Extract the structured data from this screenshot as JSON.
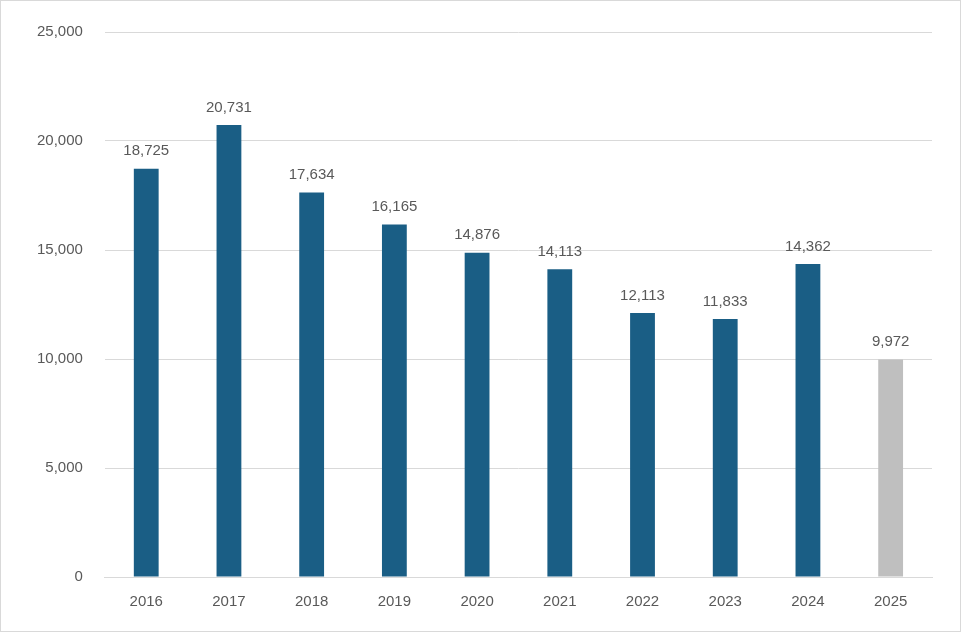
{
  "chart_data": {
    "type": "bar",
    "categories": [
      "2016",
      "2017",
      "2018",
      "2019",
      "2020",
      "2021",
      "2022",
      "2023",
      "2024",
      "2025"
    ],
    "values": [
      18725,
      20731,
      17634,
      16165,
      14876,
      14113,
      12113,
      11833,
      14362,
      9972
    ],
    "value_labels": [
      "18,725",
      "20,731",
      "17,634",
      "16,165",
      "14,876",
      "14,113",
      "12,113",
      "11,833",
      "14,362",
      "9,972"
    ],
    "colors": [
      "#1a5e85",
      "#1a5e85",
      "#1a5e85",
      "#1a5e85",
      "#1a5e85",
      "#1a5e85",
      "#1a5e85",
      "#1a5e85",
      "#1a5e85",
      "#bfbfbf"
    ],
    "ylim": [
      0,
      25000
    ],
    "yticks": [
      0,
      {
        "value": 5000,
        "label": "5,000"
      },
      {
        "value": 10000,
        "label": "10,000"
      },
      {
        "value": 15000,
        "label": "15,000"
      },
      {
        "value": 20000,
        "label": "20,000"
      },
      {
        "value": 25000,
        "label": "25,000"
      }
    ],
    "grid": true,
    "data_labels": true
  }
}
